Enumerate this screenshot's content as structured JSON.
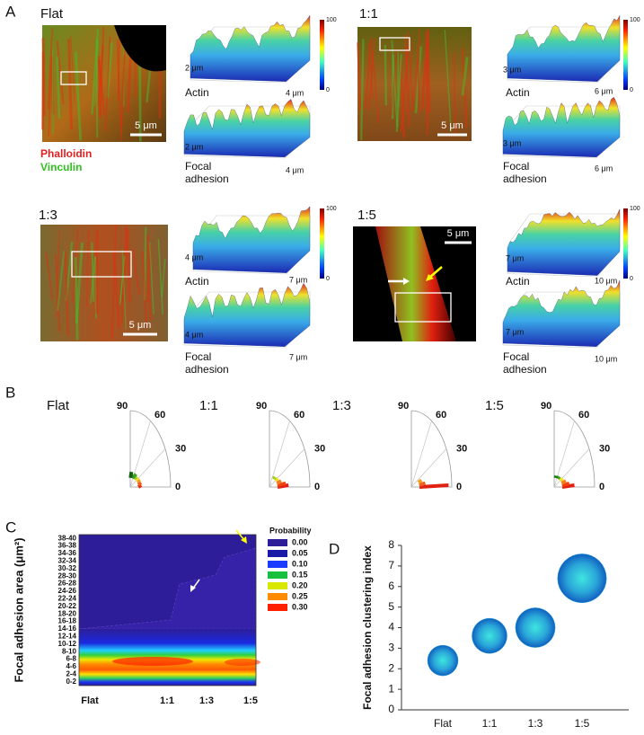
{
  "panel_labels": [
    "A",
    "B",
    "C",
    "D"
  ],
  "stain_labels": [
    "Phalloidin",
    "Vinculin"
  ],
  "panel_a": [
    {
      "title": "Flat",
      "scale_bar": "5 μm",
      "y_extent": "2 μm",
      "x_extent": "4 μm",
      "colorbar_max": "100",
      "colorbar_min": "0",
      "top_label": "Actin",
      "bottom_label": [
        "Focal",
        "adhesion"
      ]
    },
    {
      "title": "1:1",
      "scale_bar": "5 μm",
      "y_extent": "3 μm",
      "x_extent": "6 μm",
      "colorbar_max": "100",
      "colorbar_min": "0",
      "top_label": "Actin",
      "bottom_label": [
        "Focal",
        "adhesion"
      ]
    },
    {
      "title": "1:3",
      "scale_bar": "5 μm",
      "y_extent": "4 μm",
      "x_extent": "7 μm",
      "colorbar_max": "100",
      "colorbar_min": "0",
      "top_label": "Actin",
      "bottom_label": [
        "Focal",
        "adhesion"
      ]
    },
    {
      "title": "1:5",
      "scale_bar": "5 μm",
      "y_extent": "7 μm",
      "x_extent": "10 μm",
      "colorbar_max": "100",
      "colorbar_min": "0",
      "top_label": "Actin",
      "bottom_label": [
        "Focal",
        "adhesion"
      ]
    }
  ],
  "panel_b": {
    "titles": [
      "Flat",
      "1:1",
      "1:3",
      "1:5"
    ],
    "angle_labels": [
      "90",
      "60",
      "30",
      "0"
    ]
  },
  "chart_data": [
    {
      "type": "contour",
      "y_label": "Focal adhesion area (μm²)",
      "categories": [
        "Flat",
        "1:1",
        "1:3",
        "1:5"
      ],
      "y_categories": [
        "0-2",
        "2-4",
        "4-6",
        "6-8",
        "8-10",
        "10-12",
        "12-14",
        "14-16",
        "16-18",
        "18-20",
        "20-22",
        "22-24",
        "24-26",
        "26-28",
        "28-30",
        "30-32",
        "32-34",
        "34-36",
        "36-38",
        "38-40"
      ],
      "legend_title": "Probability",
      "levels": [
        {
          "value": 0,
          "label": "0.00"
        },
        {
          "value": 0.05,
          "label": "0.05"
        },
        {
          "value": 0.1,
          "label": "0.10"
        },
        {
          "value": 0.15,
          "label": "0.15"
        },
        {
          "value": 0.2,
          "label": "0.20"
        },
        {
          "value": 0.25,
          "label": "0.25"
        },
        {
          "value": 0.3,
          "label": "0.30"
        }
      ],
      "level_colors": [
        "#2e1d99",
        "#1a1aa8",
        "#1a3cff",
        "#18c040",
        "#d8e800",
        "#ff8c00",
        "#ff2000"
      ]
    },
    {
      "type": "bubble",
      "y_label": "Focal adhesion clustering index",
      "categories": [
        "Flat",
        "1:1",
        "1:3",
        "1:5"
      ],
      "values": [
        2.4,
        3.6,
        4.0,
        6.4
      ],
      "sizes": [
        1.0,
        1.15,
        1.3,
        1.6
      ],
      "ylim": [
        0,
        8
      ],
      "yticks": [
        0,
        1,
        2,
        3,
        4,
        5,
        6,
        7,
        8
      ],
      "color": "#2aa5d8"
    }
  ]
}
